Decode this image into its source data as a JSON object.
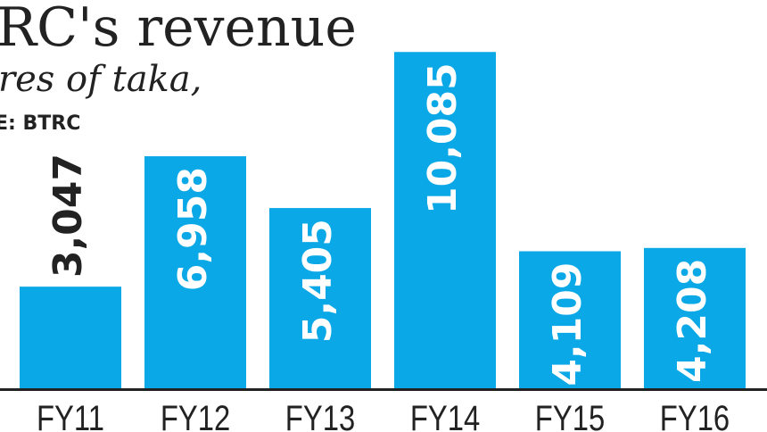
{
  "chart_data": {
    "type": "bar",
    "title": "RC's revenue",
    "subtitle": "res of taka,",
    "source": "E: BTRC",
    "categories": [
      "FY11",
      "FY12",
      "FY13",
      "FY14",
      "FY15",
      "FY16"
    ],
    "values": [
      3047,
      6958,
      5405,
      10085,
      4109,
      4208
    ],
    "value_labels": [
      "3,047",
      "6,958",
      "5,405",
      "10,085",
      "4,109",
      "4,208"
    ],
    "ylim": [
      0,
      10600
    ],
    "grid": false,
    "legend": "none",
    "bar_color": "#0aa8e6",
    "axis_color": "#222222",
    "label_color_inside": "#ffffff",
    "label_color_outside": "#222222"
  }
}
